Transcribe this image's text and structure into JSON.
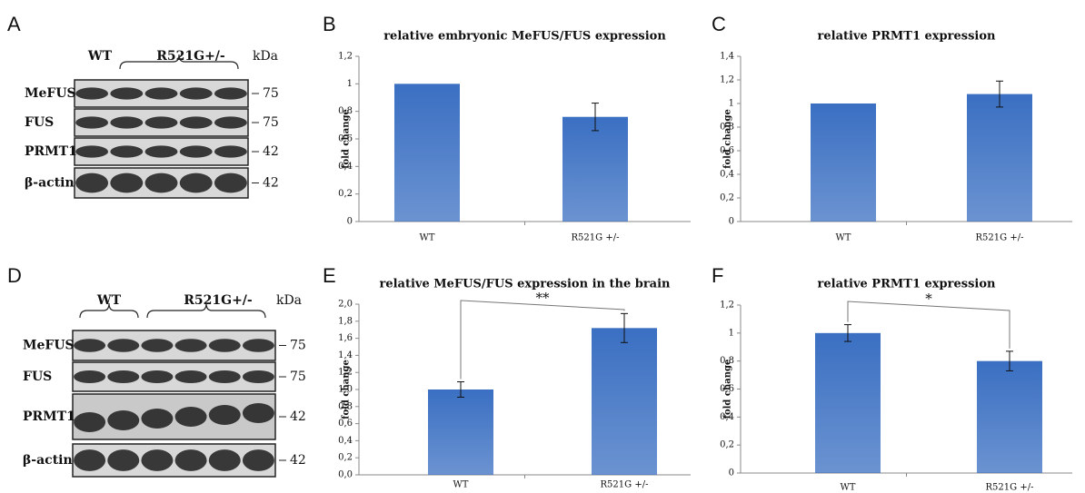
{
  "blots": [
    {
      "panel": "A",
      "groups": [
        "WT",
        "R521G+/-"
      ],
      "unit": "kDa",
      "rows": [
        {
          "label": "MeFUS",
          "kda": 75
        },
        {
          "label": "FUS",
          "kda": 75
        },
        {
          "label": "PRMT1",
          "kda": 42
        },
        {
          "label": "β-actin",
          "kda": 42
        }
      ]
    },
    {
      "panel": "D",
      "groups": [
        "WT",
        "R521G+/-"
      ],
      "unit": "kDa",
      "rows": [
        {
          "label": "MeFUS",
          "kda": 75
        },
        {
          "label": "FUS",
          "kda": 75
        },
        {
          "label": "PRMT1",
          "kda": 42
        },
        {
          "label": "β-actin",
          "kda": 42
        }
      ]
    }
  ],
  "chart_data": [
    {
      "type": "bar",
      "panel": "B",
      "title": "relative embryonic MeFUS/FUS expression",
      "y_label": "fold change",
      "categories": [
        "WT",
        "R521G +/-"
      ],
      "values": [
        1,
        0.76
      ],
      "errors": [
        null,
        0.1
      ],
      "color": "#3a6fc2",
      "ylim": [
        0,
        1.2
      ],
      "yticks": [
        0,
        {
          "value": 0.2,
          "label": "0,2"
        },
        {
          "value": 0.4,
          "label": "0,4"
        },
        {
          "value": 0.6,
          "label": "0,6"
        },
        {
          "value": 0.8,
          "label": "0,8"
        },
        1,
        {
          "value": 1.2,
          "label": "1,2"
        }
      ]
    },
    {
      "type": "bar",
      "panel": "C",
      "title": "relative PRMT1 expression",
      "y_label": "fold change",
      "categories": [
        "WT",
        "R521G +/-"
      ],
      "values": [
        1,
        1.08
      ],
      "errors": [
        null,
        0.11
      ],
      "color": "#3a6fc2",
      "ylim": [
        0,
        1.4
      ],
      "yticks": [
        0,
        {
          "value": 0.2,
          "label": "0,2"
        },
        {
          "value": 0.4,
          "label": "0,4"
        },
        {
          "value": 0.6,
          "label": "0,6"
        },
        {
          "value": 0.8,
          "label": "0,8"
        },
        1,
        {
          "value": 1.2,
          "label": "1,2"
        },
        {
          "value": 1.4,
          "label": "1,4"
        }
      ]
    },
    {
      "type": "bar",
      "panel": "E",
      "title": "relative MeFUS/FUS expression in the brain",
      "y_label": "fold change",
      "categories": [
        "WT",
        "R521G +/-"
      ],
      "values": [
        1,
        1.72
      ],
      "errors": [
        0.09,
        0.17
      ],
      "color": "#3a6fc2",
      "significance": "**",
      "ylim": [
        0,
        2
      ],
      "yticks": [
        {
          "value": 0,
          "label": "0,0"
        },
        {
          "value": 0.2,
          "label": "0,2"
        },
        {
          "value": 0.4,
          "label": "0,4"
        },
        {
          "value": 0.6,
          "label": "0,6"
        },
        {
          "value": 0.8,
          "label": "0,8"
        },
        {
          "value": 1,
          "label": "1,0"
        },
        {
          "value": 1.2,
          "label": "1,2"
        },
        {
          "value": 1.4,
          "label": "1,4"
        },
        {
          "value": 1.6,
          "label": "1,6"
        },
        {
          "value": 1.8,
          "label": "1,8"
        },
        {
          "value": 2,
          "label": "2,0"
        }
      ]
    },
    {
      "type": "bar",
      "panel": "F",
      "title": "relative PRMT1 expression",
      "y_label": "fold change",
      "categories": [
        "WT",
        "R521G +/-"
      ],
      "values": [
        1,
        0.8
      ],
      "errors": [
        0.06,
        0.07
      ],
      "color": "#3a6fc2",
      "significance": "*",
      "ylim": [
        0,
        1.2
      ],
      "yticks": [
        0,
        {
          "value": 0.2,
          "label": "0,2"
        },
        {
          "value": 0.4,
          "label": "0,4"
        },
        {
          "value": 0.6,
          "label": "0,6"
        },
        {
          "value": 0.8,
          "label": "0,8"
        },
        1,
        {
          "value": 1.2,
          "label": "1,2"
        }
      ]
    }
  ]
}
